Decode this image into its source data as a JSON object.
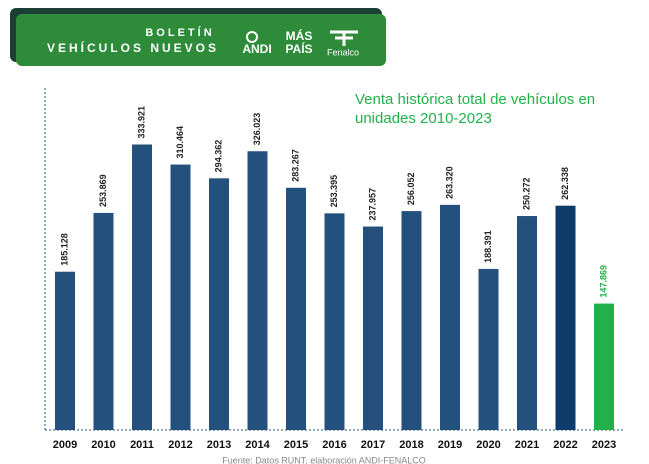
{
  "header": {
    "line1": "BOLETÍN",
    "line2": "VEHÍCULOS NUEVOS",
    "logo1": "ANDI",
    "logo2a": "MÁS",
    "logo2b": "PAÍS",
    "logo3": "Fenalco"
  },
  "chart_data": {
    "type": "bar",
    "title": "Venta histórica total de  vehículos en unidades 2010-2023",
    "categories": [
      "2009",
      "2010",
      "2011",
      "2012",
      "2013",
      "2014",
      "2015",
      "2016",
      "2017",
      "2018",
      "2019",
      "2020",
      "2021",
      "2022",
      "2023"
    ],
    "values": [
      185128,
      253869,
      333921,
      310464,
      294362,
      326023,
      283267,
      253395,
      237957,
      256052,
      263320,
      188391,
      250272,
      262338,
      147869
    ],
    "value_labels": [
      "185.128",
      "253.869",
      "333.921",
      "310.464",
      "294.362",
      "326.023",
      "283.267",
      "253.395",
      "237.957",
      "256.052",
      "263.320",
      "188.391",
      "250.272",
      "262.338",
      "147.869"
    ],
    "colors": [
      "#24507e",
      "#24507e",
      "#24507e",
      "#24507e",
      "#24507e",
      "#24507e",
      "#24507e",
      "#24507e",
      "#24507e",
      "#24507e",
      "#24507e",
      "#24507e",
      "#24507e",
      "#0f3b6b",
      "#22b04b"
    ],
    "ylim": [
      0,
      400000
    ],
    "source": "Fuente: Datos RUNT, elaboración ANDI-FENALCO"
  }
}
